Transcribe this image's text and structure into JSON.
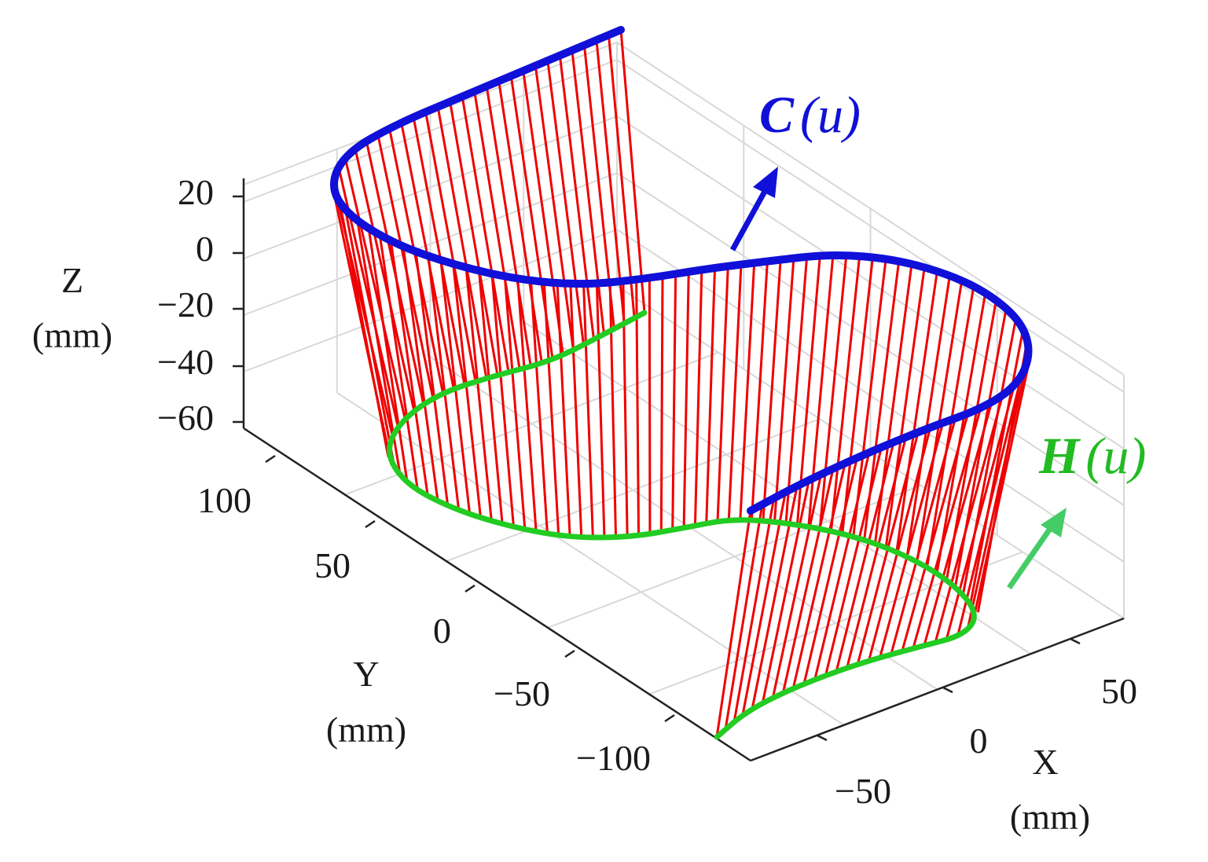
{
  "chart_data": {
    "type": "surface-3d",
    "title": "",
    "axes": {
      "x": {
        "label": "X",
        "unit": "(mm)",
        "ticks": [
          "−50",
          "0",
          "50"
        ],
        "tick_values": [
          -50,
          0,
          50
        ],
        "range": [
          -90,
          90
        ]
      },
      "y": {
        "label": "Y",
        "unit": "(mm)",
        "ticks": [
          "−100",
          "−50",
          "0",
          "50",
          "100"
        ],
        "tick_values": [
          -100,
          -50,
          0,
          50,
          100
        ],
        "range": [
          -120,
          120
        ]
      },
      "z": {
        "label": "Z",
        "unit": "(mm)",
        "ticks": [
          "20",
          "0",
          "−20",
          "−40",
          "−60"
        ],
        "tick_values": [
          20,
          0,
          -20,
          -40,
          -60
        ],
        "range": [
          -65,
          30
        ]
      }
    },
    "grid": true,
    "series": [
      {
        "name": "C(u)",
        "label_main": "C",
        "label_arg": "(u)",
        "color": "#1010d8",
        "role": "upper directrix curve",
        "z_approx": 10
      },
      {
        "name": "H(u)",
        "label_main": "H",
        "label_arg": "(u)",
        "color": "#22cc22",
        "role": "lower directrix curve",
        "z_approx": -60
      },
      {
        "name": "rulings",
        "color": "#ee0000",
        "role": "straight rulings connecting C(u) to H(u)"
      }
    ]
  }
}
